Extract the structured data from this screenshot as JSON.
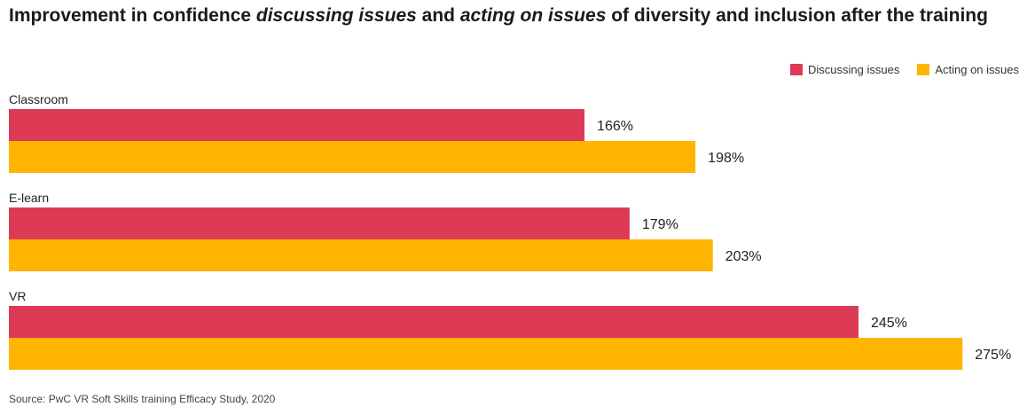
{
  "title": {
    "part1": "Improvement in confidence ",
    "em1": "discussing issues",
    "part2": " and ",
    "em2": "acting on issues",
    "part3": " of diversity and inclusion after the training"
  },
  "source": "Source: PwC VR Soft Skills training Efficacy Study, 2020",
  "colors": {
    "discussing": "#dc3a55",
    "acting": "#ffb400"
  },
  "chart_data": {
    "type": "bar",
    "orientation": "horizontal",
    "categories": [
      "Classroom",
      "E-learn",
      "VR"
    ],
    "series": [
      {
        "name": "Discussing issues",
        "values": [
          166,
          179,
          245
        ],
        "labels": [
          "166%",
          "179%",
          "245%"
        ]
      },
      {
        "name": "Acting on issues",
        "values": [
          198,
          203,
          275
        ],
        "labels": [
          "198%",
          "203%",
          "275%"
        ]
      }
    ],
    "legend_position": "top-right",
    "grid": false,
    "xlim": [
      0,
      300
    ]
  }
}
